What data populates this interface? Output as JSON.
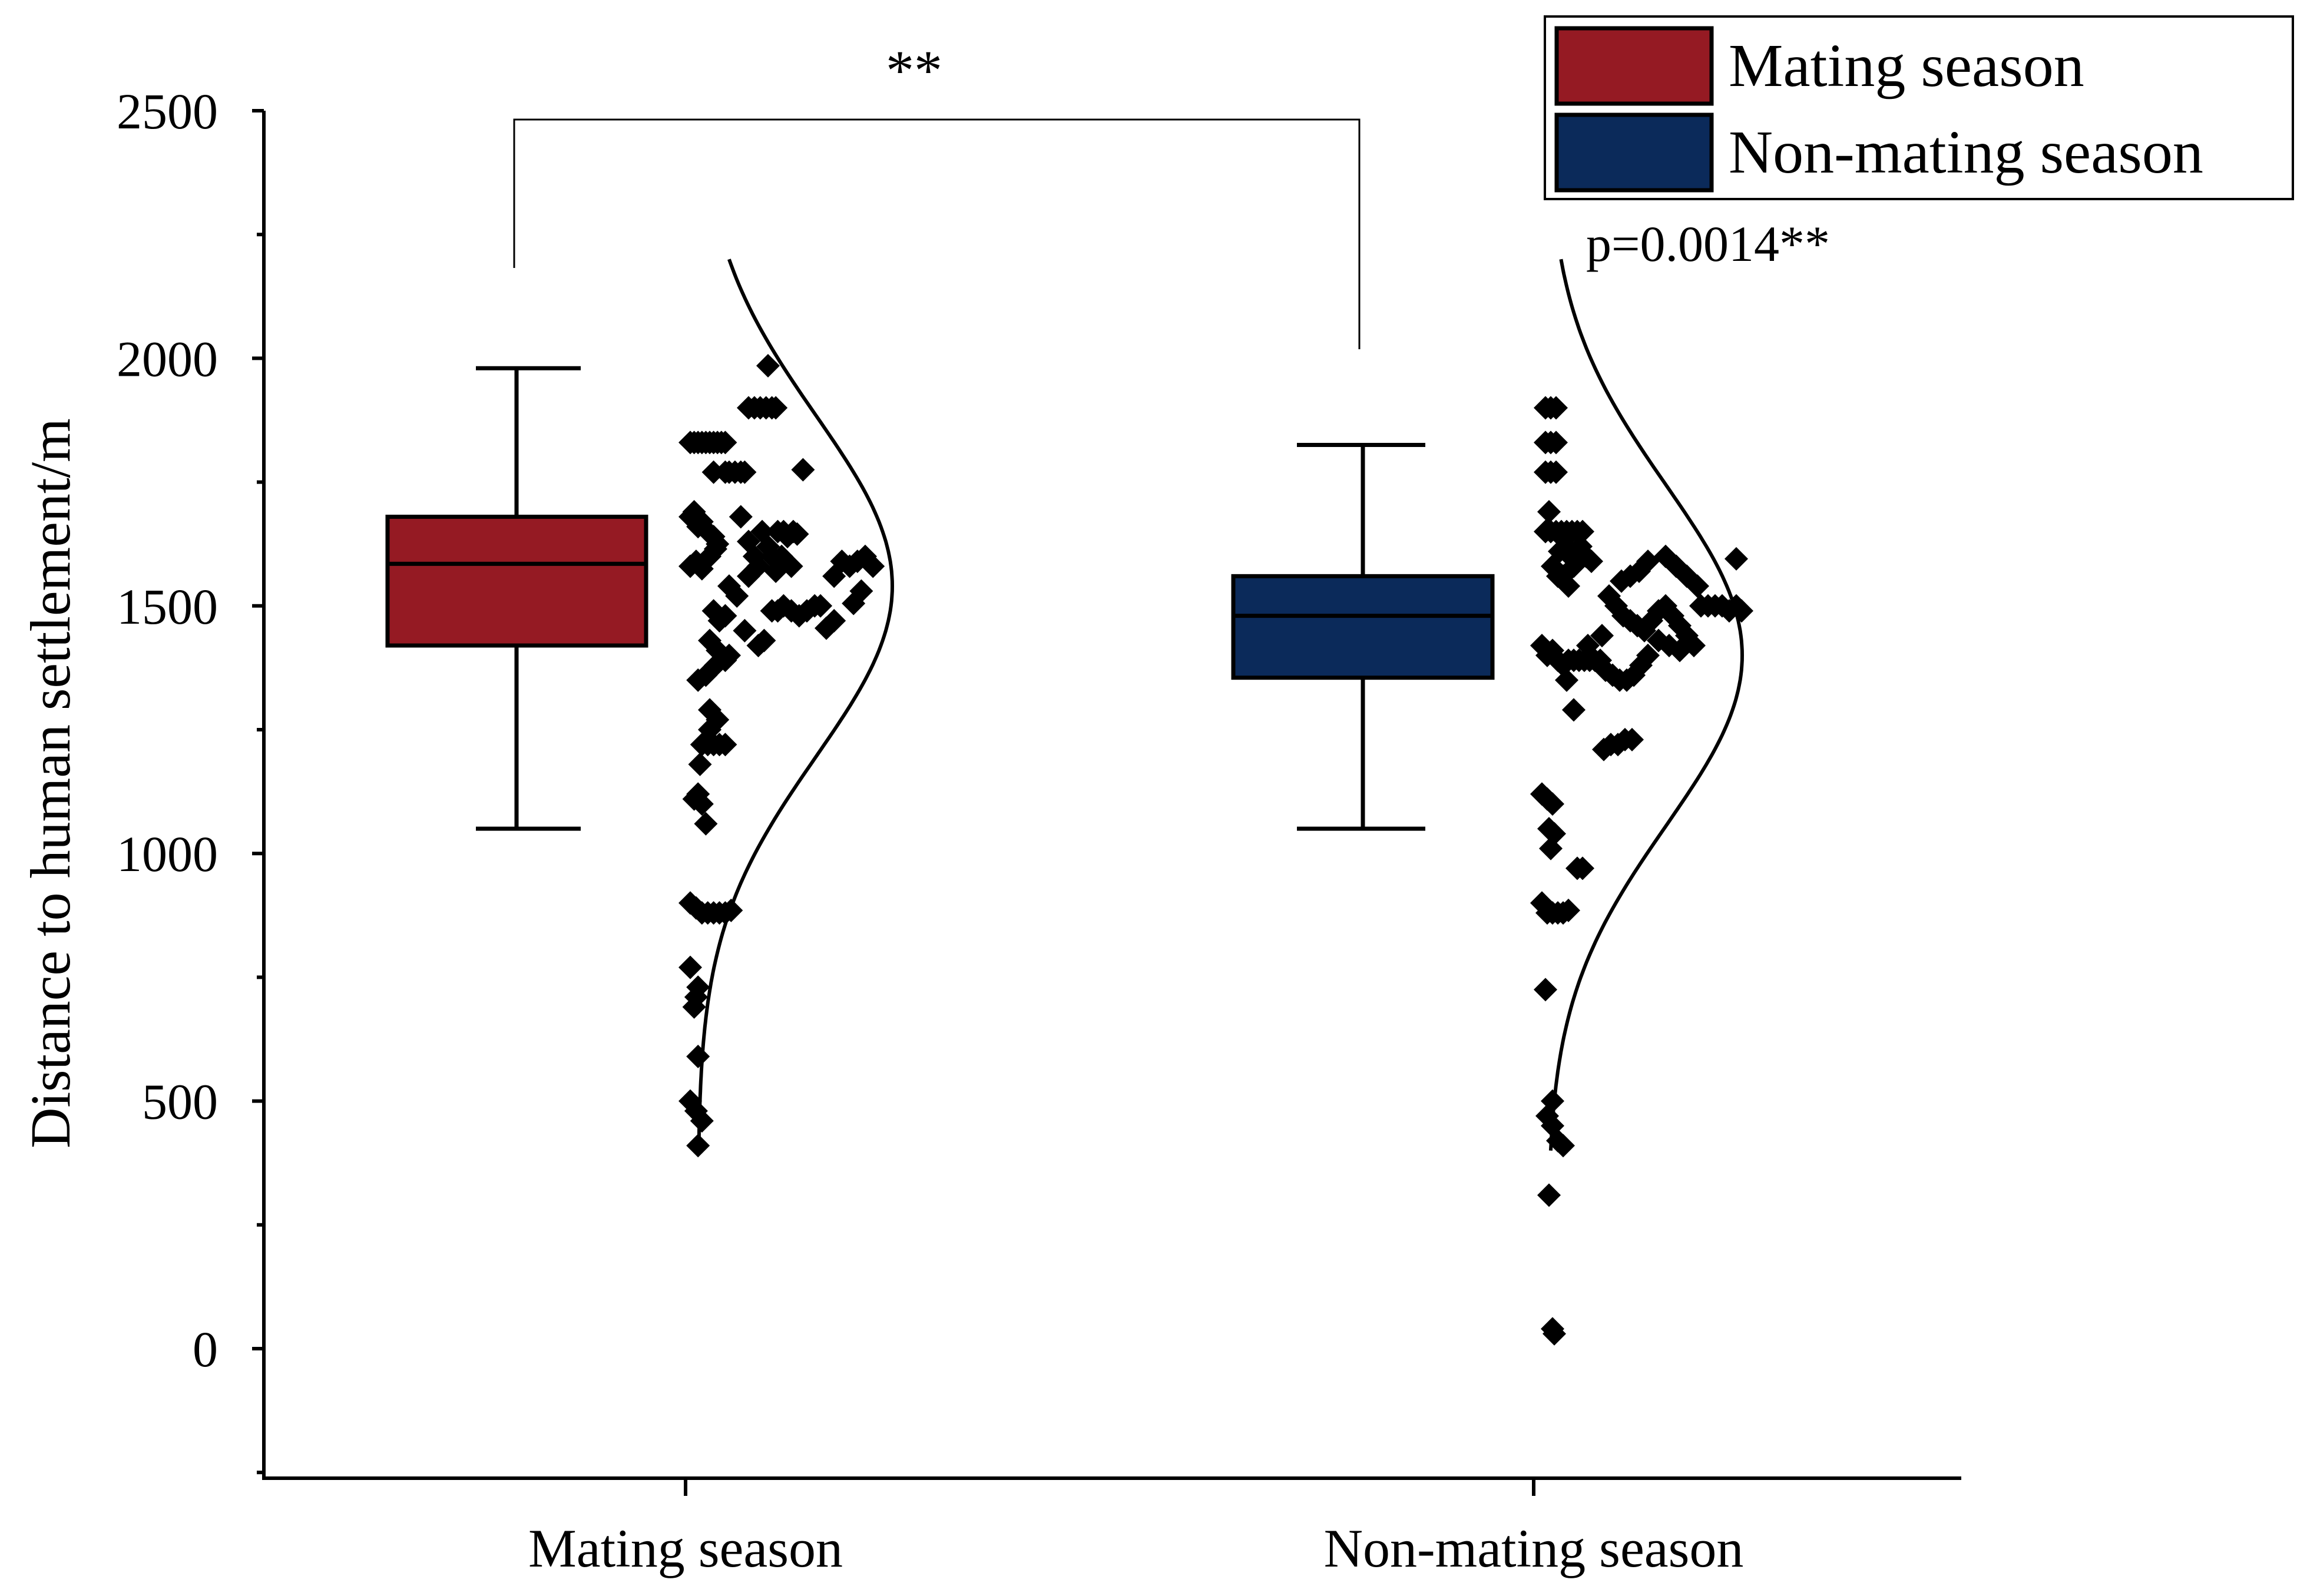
{
  "chart_data": {
    "type": "box-with-scatter-and-density",
    "ylabel": "Distance to human settlement/m",
    "xlabel": "",
    "ylim": [
      -250,
      2500
    ],
    "yticks": [
      0,
      500,
      1000,
      1500,
      2000,
      2500
    ],
    "ytick_labels": [
      "0",
      "500",
      "1000",
      "1500",
      "2000",
      "2500"
    ],
    "categories": [
      "Mating season",
      "Non-mating season"
    ],
    "colors": {
      "mating": "#951a23",
      "non_mating": "#0b2a5a"
    },
    "significance": {
      "bracket_label": "**",
      "p_value_label": "p=0.0014**"
    },
    "legend": [
      {
        "label": "Mating season",
        "color": "#951a23"
      },
      {
        "label": "Non-mating season",
        "color": "#0b2a5a"
      }
    ],
    "series": [
      {
        "name": "Mating season",
        "color": "#951a23",
        "box": {
          "whisker_low": 1050,
          "q1": 1420,
          "median": 1585,
          "q3": 1680,
          "whisker_high": 1980
        },
        "density": {
          "mean": 1540,
          "sd": 345,
          "range": [
            400,
            2200
          ]
        },
        "points": [
          [
            0.0,
            1830
          ],
          [
            0.02,
            1830
          ],
          [
            0.04,
            1830
          ],
          [
            0.06,
            1830
          ],
          [
            0.08,
            1830
          ],
          [
            0.1,
            1830
          ],
          [
            0.12,
            1830
          ],
          [
            0.14,
            1830
          ],
          [
            0.16,
            1830
          ],
          [
            0.18,
            1830
          ],
          [
            0.0,
            1680
          ],
          [
            0.02,
            1690
          ],
          [
            0.04,
            1660
          ],
          [
            0.06,
            1670
          ],
          [
            0.09,
            1650
          ],
          [
            0.12,
            1640
          ],
          [
            0.14,
            1625
          ],
          [
            0.0,
            1580
          ],
          [
            0.03,
            1590
          ],
          [
            0.06,
            1575
          ],
          [
            0.1,
            1600
          ],
          [
            0.13,
            1615
          ],
          [
            0.12,
            1770
          ],
          [
            0.18,
            1770
          ],
          [
            0.2,
            1770
          ],
          [
            0.23,
            1770
          ],
          [
            0.26,
            1770
          ],
          [
            0.28,
            1770
          ],
          [
            0.3,
            1900
          ],
          [
            0.33,
            1900
          ],
          [
            0.36,
            1900
          ],
          [
            0.39,
            1900
          ],
          [
            0.42,
            1900
          ],
          [
            0.44,
            1900
          ],
          [
            0.4,
            1985
          ],
          [
            0.26,
            1680
          ],
          [
            0.3,
            1630
          ],
          [
            0.33,
            1600
          ],
          [
            0.35,
            1580
          ],
          [
            0.37,
            1650
          ],
          [
            0.4,
            1620
          ],
          [
            0.42,
            1600
          ],
          [
            0.45,
            1650
          ],
          [
            0.48,
            1650
          ],
          [
            0.5,
            1640
          ],
          [
            0.53,
            1650
          ],
          [
            0.55,
            1645
          ],
          [
            0.44,
            1570
          ],
          [
            0.47,
            1600
          ],
          [
            0.52,
            1580
          ],
          [
            0.2,
            1540
          ],
          [
            0.24,
            1520
          ],
          [
            0.3,
            1560
          ],
          [
            0.42,
            1490
          ],
          [
            0.45,
            1490
          ],
          [
            0.48,
            1500
          ],
          [
            0.52,
            1490
          ],
          [
            0.56,
            1480
          ],
          [
            0.6,
            1490
          ],
          [
            0.64,
            1500
          ],
          [
            0.67,
            1500
          ],
          [
            0.7,
            1455
          ],
          [
            0.74,
            1470
          ],
          [
            0.78,
            1590
          ],
          [
            0.82,
            1580
          ],
          [
            0.86,
            1590
          ],
          [
            0.9,
            1600
          ],
          [
            0.94,
            1580
          ],
          [
            0.88,
            1530
          ],
          [
            0.84,
            1505
          ],
          [
            0.74,
            1560
          ],
          [
            0.58,
            1775
          ],
          [
            0.12,
            1490
          ],
          [
            0.15,
            1470
          ],
          [
            0.18,
            1480
          ],
          [
            0.28,
            1450
          ],
          [
            0.35,
            1420
          ],
          [
            0.38,
            1430
          ],
          [
            0.1,
            1430
          ],
          [
            0.14,
            1410
          ],
          [
            0.18,
            1390
          ],
          [
            0.2,
            1400
          ],
          [
            0.13,
            1380
          ],
          [
            0.08,
            1360
          ],
          [
            0.04,
            1350
          ],
          [
            0.1,
            1290
          ],
          [
            0.14,
            1270
          ],
          [
            0.1,
            1250
          ],
          [
            0.06,
            1220
          ],
          [
            0.09,
            1220
          ],
          [
            0.12,
            1220
          ],
          [
            0.15,
            1220
          ],
          [
            0.18,
            1220
          ],
          [
            0.05,
            1180
          ],
          [
            0.02,
            1110
          ],
          [
            0.06,
            1100
          ],
          [
            0.04,
            1120
          ],
          [
            0.08,
            1060
          ],
          [
            0.0,
            900
          ],
          [
            0.03,
            890
          ],
          [
            0.06,
            880
          ],
          [
            0.09,
            880
          ],
          [
            0.12,
            880
          ],
          [
            0.15,
            880
          ],
          [
            0.18,
            880
          ],
          [
            0.21,
            885
          ],
          [
            0.0,
            770
          ],
          [
            0.04,
            730
          ],
          [
            0.03,
            710
          ],
          [
            0.02,
            690
          ],
          [
            0.04,
            590
          ],
          [
            0.0,
            500
          ],
          [
            0.03,
            480
          ],
          [
            0.06,
            460
          ],
          [
            0.04,
            410
          ]
        ]
      },
      {
        "name": "Non-mating season",
        "color": "#0b2a5a",
        "box": {
          "whisker_low": 1050,
          "q1": 1355,
          "median": 1480,
          "q3": 1560,
          "whisker_high": 1825
        },
        "density": {
          "mean": 1400,
          "sd": 345,
          "range": [
            400,
            2200
          ]
        },
        "points": [
          [
            0.02,
            1900
          ],
          [
            0.05,
            1900
          ],
          [
            0.08,
            1900
          ],
          [
            0.02,
            1830
          ],
          [
            0.05,
            1830
          ],
          [
            0.08,
            1830
          ],
          [
            0.02,
            1770
          ],
          [
            0.05,
            1770
          ],
          [
            0.08,
            1770
          ],
          [
            0.04,
            1690
          ],
          [
            0.02,
            1650
          ],
          [
            0.05,
            1650
          ],
          [
            0.08,
            1650
          ],
          [
            0.11,
            1650
          ],
          [
            0.14,
            1650
          ],
          [
            0.17,
            1650
          ],
          [
            0.2,
            1650
          ],
          [
            0.23,
            1650
          ],
          [
            0.1,
            1610
          ],
          [
            0.13,
            1620
          ],
          [
            0.16,
            1600
          ],
          [
            0.19,
            1610
          ],
          [
            0.22,
            1620
          ],
          [
            0.25,
            1600
          ],
          [
            0.28,
            1590
          ],
          [
            0.06,
            1580
          ],
          [
            0.09,
            1560
          ],
          [
            0.12,
            1560
          ],
          [
            0.15,
            1540
          ],
          [
            0.18,
            1580
          ],
          [
            0.45,
            1550
          ],
          [
            0.5,
            1560
          ],
          [
            0.55,
            1570
          ],
          [
            0.6,
            1590
          ],
          [
            0.7,
            1600
          ],
          [
            0.76,
            1580
          ],
          [
            0.82,
            1560
          ],
          [
            0.88,
            1540
          ],
          [
            1.1,
            1595
          ],
          [
            0.38,
            1520
          ],
          [
            0.42,
            1500
          ],
          [
            0.46,
            1480
          ],
          [
            0.5,
            1470
          ],
          [
            0.54,
            1460
          ],
          [
            0.58,
            1450
          ],
          [
            0.62,
            1470
          ],
          [
            0.66,
            1490
          ],
          [
            0.7,
            1500
          ],
          [
            0.74,
            1480
          ],
          [
            0.78,
            1460
          ],
          [
            0.82,
            1440
          ],
          [
            0.86,
            1420
          ],
          [
            0.9,
            1500
          ],
          [
            0.94,
            1500
          ],
          [
            0.98,
            1500
          ],
          [
            1.02,
            1500
          ],
          [
            1.06,
            1490
          ],
          [
            1.1,
            1500
          ],
          [
            1.13,
            1490
          ],
          [
            0.0,
            1420
          ],
          [
            0.03,
            1400
          ],
          [
            0.06,
            1410
          ],
          [
            0.09,
            1390
          ],
          [
            0.12,
            1380
          ],
          [
            0.15,
            1390
          ],
          [
            0.18,
            1390
          ],
          [
            0.21,
            1390
          ],
          [
            0.24,
            1390
          ],
          [
            0.27,
            1390
          ],
          [
            0.3,
            1390
          ],
          [
            0.33,
            1390
          ],
          [
            0.36,
            1370
          ],
          [
            0.4,
            1360
          ],
          [
            0.44,
            1350
          ],
          [
            0.48,
            1350
          ],
          [
            0.52,
            1360
          ],
          [
            0.56,
            1380
          ],
          [
            0.6,
            1400
          ],
          [
            0.26,
            1420
          ],
          [
            0.34,
            1440
          ],
          [
            0.66,
            1430
          ],
          [
            0.72,
            1420
          ],
          [
            0.78,
            1410
          ],
          [
            0.14,
            1350
          ],
          [
            0.18,
            1290
          ],
          [
            0.35,
            1210
          ],
          [
            0.39,
            1220
          ],
          [
            0.43,
            1220
          ],
          [
            0.47,
            1230
          ],
          [
            0.51,
            1230
          ],
          [
            0.0,
            1120
          ],
          [
            0.03,
            1110
          ],
          [
            0.06,
            1100
          ],
          [
            0.04,
            1050
          ],
          [
            0.07,
            1040
          ],
          [
            0.05,
            1010
          ],
          [
            0.2,
            970
          ],
          [
            0.23,
            970
          ],
          [
            0.0,
            900
          ],
          [
            0.03,
            880
          ],
          [
            0.06,
            880
          ],
          [
            0.09,
            880
          ],
          [
            0.12,
            880
          ],
          [
            0.15,
            885
          ],
          [
            0.02,
            725
          ],
          [
            0.06,
            500
          ],
          [
            0.03,
            470
          ],
          [
            0.06,
            450
          ],
          [
            0.09,
            420
          ],
          [
            0.12,
            410
          ],
          [
            0.04,
            310
          ],
          [
            0.06,
            40
          ],
          [
            0.07,
            30
          ]
        ]
      }
    ]
  }
}
